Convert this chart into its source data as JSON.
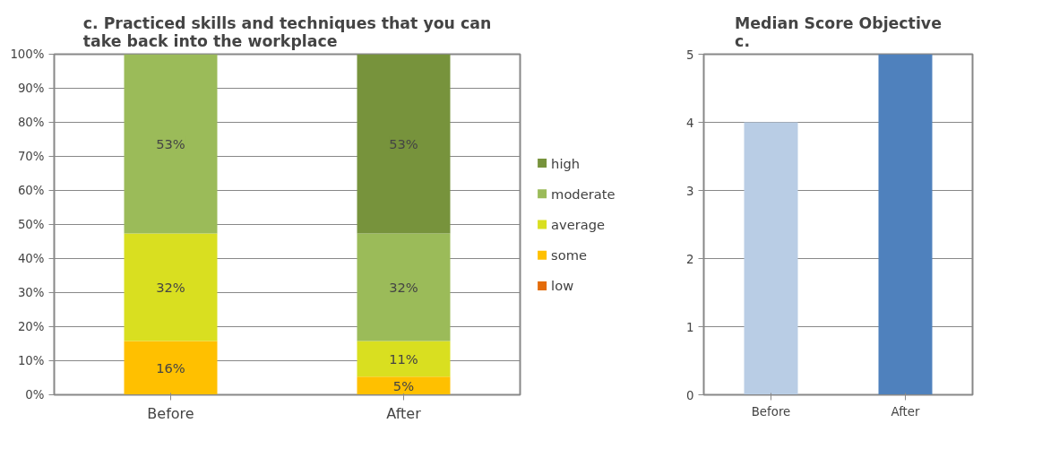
{
  "chart_data": [
    {
      "type": "bar",
      "stacked": true,
      "title": "c. Practiced skills and techniques that you can\ntake back into the workplace",
      "categories": [
        "Before",
        "After"
      ],
      "series": [
        {
          "name": "low",
          "color": "#e46c0a",
          "values": [
            0,
            0
          ],
          "value_labels": [
            null,
            null
          ]
        },
        {
          "name": "some",
          "color": "#ffc000",
          "values": [
            15.8,
            5.3
          ],
          "value_labels": [
            "16%",
            "5%"
          ]
        },
        {
          "name": "average",
          "color": "#d9df20",
          "values": [
            31.6,
            10.5
          ],
          "value_labels": [
            "32%",
            "11%"
          ]
        },
        {
          "name": "moderate",
          "color": "#9bbb59",
          "values": [
            52.6,
            31.6
          ],
          "value_labels": [
            "53%",
            "32%"
          ]
        },
        {
          "name": "high",
          "color": "#77933c",
          "values": [
            0,
            52.6
          ],
          "value_labels": [
            null,
            "53%"
          ]
        }
      ],
      "ylim": [
        0,
        100
      ],
      "yticks": [
        {
          "value": 0,
          "label": "0%"
        },
        {
          "value": 10,
          "label": "10%"
        },
        {
          "value": 20,
          "label": "20%"
        },
        {
          "value": 30,
          "label": "30%"
        },
        {
          "value": 40,
          "label": "40%"
        },
        {
          "value": 50,
          "label": "50%"
        },
        {
          "value": 60,
          "label": "60%"
        },
        {
          "value": 70,
          "label": "70%"
        },
        {
          "value": 80,
          "label": "80%"
        },
        {
          "value": 90,
          "label": "90%"
        },
        {
          "value": 100,
          "label": "100%"
        }
      ],
      "grid": "y",
      "legend": "right"
    },
    {
      "type": "bar",
      "title": "Median Score Objective\nc.",
      "categories": [
        "Before",
        "After"
      ],
      "values": [
        4,
        5
      ],
      "colors": [
        "#b9cde5",
        "#4f81bd"
      ],
      "ylim": [
        0,
        5
      ],
      "yticks": [
        0,
        1,
        2,
        3,
        4,
        5
      ],
      "grid": "y",
      "legend": false
    }
  ]
}
